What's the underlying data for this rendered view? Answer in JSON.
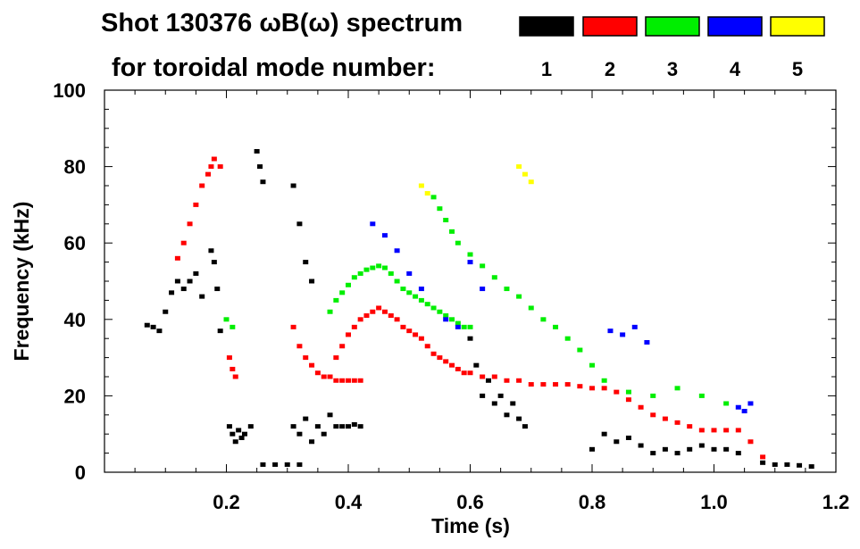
{
  "chart_data": {
    "type": "scatter",
    "title": "Shot 130376 ωB(ω) spectrum",
    "subtitle": "for toroidal mode number:",
    "xlabel": "Time (s)",
    "ylabel": "Frequency (kHz)",
    "xlim": [
      0.0,
      1.2
    ],
    "ylim": [
      0,
      100
    ],
    "x_ticks": [
      "0.2",
      "0.4",
      "0.6",
      "0.8",
      "1.0",
      "1.2"
    ],
    "y_ticks": [
      "0",
      "20",
      "40",
      "60",
      "80",
      "100"
    ],
    "grid": false,
    "legend": [
      {
        "label": "1",
        "color": "#000000"
      },
      {
        "label": "2",
        "color": "#ff0000"
      },
      {
        "label": "3",
        "color": "#00ee00"
      },
      {
        "label": "4",
        "color": "#0000ff"
      },
      {
        "label": "5",
        "color": "#ffff00"
      }
    ],
    "series": [
      {
        "name": "1",
        "color": "#000000",
        "points": [
          [
            0.07,
            38.5
          ],
          [
            0.08,
            38
          ],
          [
            0.09,
            37
          ],
          [
            0.1,
            42
          ],
          [
            0.11,
            47
          ],
          [
            0.12,
            50
          ],
          [
            0.13,
            48
          ],
          [
            0.14,
            50
          ],
          [
            0.15,
            52
          ],
          [
            0.16,
            46
          ],
          [
            0.175,
            58
          ],
          [
            0.18,
            55
          ],
          [
            0.185,
            48
          ],
          [
            0.19,
            37
          ],
          [
            0.205,
            12
          ],
          [
            0.21,
            10
          ],
          [
            0.215,
            8
          ],
          [
            0.22,
            11
          ],
          [
            0.225,
            9
          ],
          [
            0.23,
            10
          ],
          [
            0.24,
            12
          ],
          [
            0.25,
            84
          ],
          [
            0.255,
            80
          ],
          [
            0.26,
            76
          ],
          [
            0.26,
            2
          ],
          [
            0.28,
            2
          ],
          [
            0.3,
            2
          ],
          [
            0.32,
            2
          ],
          [
            0.31,
            12
          ],
          [
            0.32,
            10
          ],
          [
            0.33,
            14
          ],
          [
            0.34,
            8
          ],
          [
            0.35,
            12
          ],
          [
            0.36,
            10
          ],
          [
            0.37,
            15
          ],
          [
            0.38,
            12
          ],
          [
            0.39,
            12
          ],
          [
            0.4,
            12
          ],
          [
            0.41,
            12.5
          ],
          [
            0.42,
            12
          ],
          [
            0.31,
            75
          ],
          [
            0.32,
            65
          ],
          [
            0.33,
            55
          ],
          [
            0.34,
            50
          ],
          [
            0.6,
            35
          ],
          [
            0.61,
            28
          ],
          [
            0.62,
            20
          ],
          [
            0.63,
            24
          ],
          [
            0.64,
            18
          ],
          [
            0.65,
            20
          ],
          [
            0.66,
            15
          ],
          [
            0.67,
            18
          ],
          [
            0.68,
            14
          ],
          [
            0.69,
            12
          ],
          [
            0.8,
            6
          ],
          [
            0.82,
            10
          ],
          [
            0.84,
            8
          ],
          [
            0.86,
            9
          ],
          [
            0.88,
            7
          ],
          [
            0.9,
            5
          ],
          [
            0.92,
            6
          ],
          [
            0.94,
            5
          ],
          [
            0.96,
            6
          ],
          [
            0.98,
            7
          ],
          [
            1.0,
            6
          ],
          [
            1.02,
            6
          ],
          [
            1.04,
            5
          ],
          [
            1.08,
            2.5
          ],
          [
            1.1,
            2
          ],
          [
            1.12,
            2
          ],
          [
            1.14,
            1.8
          ],
          [
            1.16,
            1.5
          ]
        ]
      },
      {
        "name": "2",
        "color": "#ff0000",
        "points": [
          [
            0.12,
            56
          ],
          [
            0.13,
            60
          ],
          [
            0.14,
            65
          ],
          [
            0.15,
            70
          ],
          [
            0.16,
            75
          ],
          [
            0.17,
            78
          ],
          [
            0.175,
            80
          ],
          [
            0.18,
            82
          ],
          [
            0.19,
            80
          ],
          [
            0.205,
            30
          ],
          [
            0.21,
            27
          ],
          [
            0.215,
            25
          ],
          [
            0.31,
            38
          ],
          [
            0.32,
            33
          ],
          [
            0.33,
            30
          ],
          [
            0.34,
            28
          ],
          [
            0.35,
            26
          ],
          [
            0.36,
            25
          ],
          [
            0.37,
            25
          ],
          [
            0.38,
            24
          ],
          [
            0.39,
            24
          ],
          [
            0.4,
            24
          ],
          [
            0.41,
            24
          ],
          [
            0.42,
            24
          ],
          [
            0.38,
            30
          ],
          [
            0.39,
            33
          ],
          [
            0.4,
            36
          ],
          [
            0.41,
            38
          ],
          [
            0.42,
            40
          ],
          [
            0.43,
            41
          ],
          [
            0.44,
            42
          ],
          [
            0.45,
            43
          ],
          [
            0.46,
            42
          ],
          [
            0.47,
            41
          ],
          [
            0.48,
            40
          ],
          [
            0.49,
            38
          ],
          [
            0.5,
            37
          ],
          [
            0.51,
            36
          ],
          [
            0.52,
            35
          ],
          [
            0.53,
            33
          ],
          [
            0.54,
            31
          ],
          [
            0.55,
            30
          ],
          [
            0.56,
            29
          ],
          [
            0.57,
            28
          ],
          [
            0.58,
            27
          ],
          [
            0.59,
            26
          ],
          [
            0.6,
            26
          ],
          [
            0.62,
            25
          ],
          [
            0.64,
            25
          ],
          [
            0.66,
            24
          ],
          [
            0.68,
            24
          ],
          [
            0.7,
            23
          ],
          [
            0.72,
            23
          ],
          [
            0.74,
            23
          ],
          [
            0.76,
            23
          ],
          [
            0.78,
            22.5
          ],
          [
            0.8,
            22
          ],
          [
            0.82,
            22
          ],
          [
            0.84,
            21
          ],
          [
            0.86,
            19
          ],
          [
            0.88,
            17
          ],
          [
            0.9,
            15
          ],
          [
            0.92,
            14
          ],
          [
            0.94,
            13
          ],
          [
            0.96,
            12
          ],
          [
            0.98,
            11
          ],
          [
            1.0,
            11
          ],
          [
            1.02,
            11
          ],
          [
            1.04,
            11
          ],
          [
            1.06,
            8
          ],
          [
            1.08,
            4
          ]
        ]
      },
      {
        "name": "3",
        "color": "#00ee00",
        "points": [
          [
            0.2,
            40
          ],
          [
            0.21,
            38
          ],
          [
            0.37,
            42
          ],
          [
            0.38,
            45
          ],
          [
            0.39,
            47
          ],
          [
            0.4,
            49
          ],
          [
            0.41,
            51
          ],
          [
            0.42,
            52
          ],
          [
            0.43,
            53
          ],
          [
            0.44,
            53.5
          ],
          [
            0.45,
            54
          ],
          [
            0.46,
            53.5
          ],
          [
            0.47,
            52
          ],
          [
            0.48,
            50
          ],
          [
            0.49,
            48
          ],
          [
            0.5,
            47
          ],
          [
            0.51,
            46
          ],
          [
            0.52,
            45
          ],
          [
            0.53,
            44
          ],
          [
            0.54,
            43
          ],
          [
            0.55,
            42
          ],
          [
            0.56,
            41
          ],
          [
            0.57,
            40
          ],
          [
            0.58,
            39
          ],
          [
            0.59,
            38
          ],
          [
            0.6,
            38
          ],
          [
            0.54,
            72
          ],
          [
            0.55,
            69
          ],
          [
            0.56,
            66
          ],
          [
            0.57,
            63
          ],
          [
            0.58,
            60
          ],
          [
            0.6,
            57
          ],
          [
            0.62,
            54
          ],
          [
            0.64,
            51
          ],
          [
            0.66,
            48
          ],
          [
            0.68,
            46
          ],
          [
            0.7,
            43
          ],
          [
            0.72,
            40
          ],
          [
            0.74,
            38
          ],
          [
            0.76,
            35
          ],
          [
            0.78,
            32
          ],
          [
            0.8,
            28
          ],
          [
            0.82,
            24
          ],
          [
            0.86,
            21
          ],
          [
            0.9,
            20
          ],
          [
            0.94,
            22
          ],
          [
            0.98,
            20
          ],
          [
            1.02,
            18
          ]
        ]
      },
      {
        "name": "4",
        "color": "#0000ff",
        "points": [
          [
            0.44,
            65
          ],
          [
            0.46,
            62
          ],
          [
            0.48,
            58
          ],
          [
            0.5,
            52
          ],
          [
            0.52,
            48
          ],
          [
            0.56,
            40
          ],
          [
            0.58,
            38
          ],
          [
            0.6,
            55
          ],
          [
            0.62,
            48
          ],
          [
            0.83,
            37
          ],
          [
            0.85,
            36
          ],
          [
            0.87,
            38
          ],
          [
            0.89,
            34
          ],
          [
            1.04,
            17
          ],
          [
            1.05,
            16
          ],
          [
            1.06,
            18
          ]
        ]
      },
      {
        "name": "5",
        "color": "#ffff00",
        "points": [
          [
            0.52,
            75
          ],
          [
            0.53,
            73
          ],
          [
            0.68,
            80
          ],
          [
            0.69,
            78
          ],
          [
            0.7,
            76
          ]
        ]
      }
    ]
  }
}
